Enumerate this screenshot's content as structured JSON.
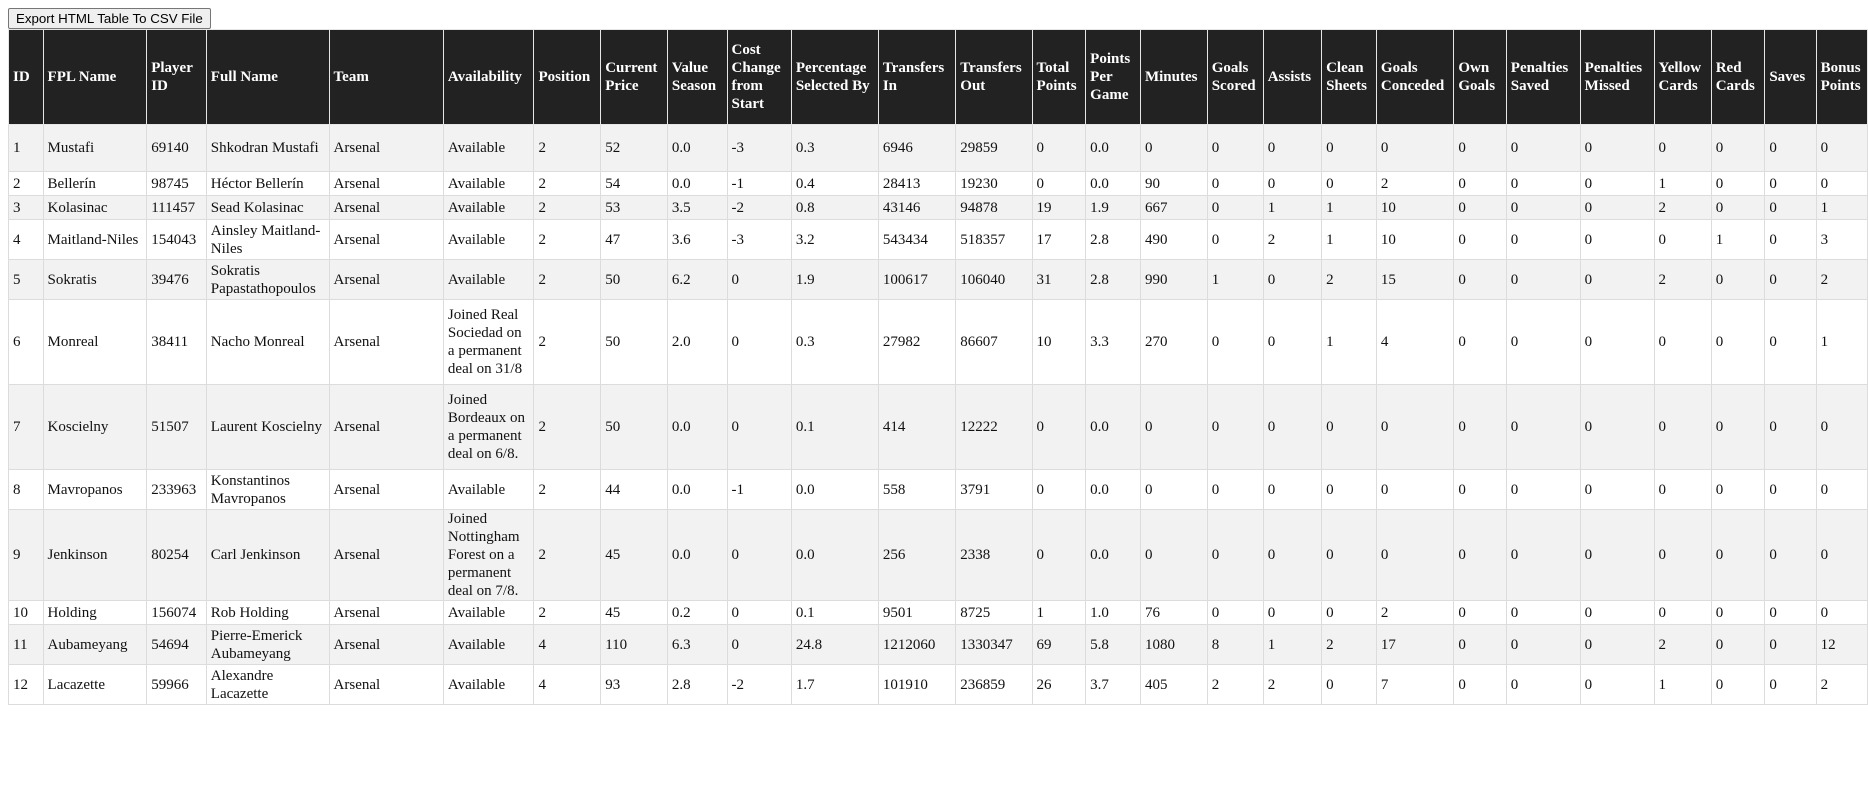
{
  "toolbar": {
    "export_label": "Export HTML Table To CSV File"
  },
  "colors": {
    "header_bg": "#222222",
    "header_text": "#ffffff",
    "row_odd": "#f2f2f2",
    "row_even": "#ffffff"
  },
  "table": {
    "columns": [
      "ID",
      "FPL Name",
      "Player ID",
      "Full Name",
      "Team",
      "Availability",
      "Position",
      "Current Price",
      "Value Season",
      "Cost Change from Start",
      "Percentage Selected By",
      "Transfers In",
      "Transfers Out",
      "Total Points",
      "Points Per Game",
      "Minutes",
      "Goals Scored",
      "Assists",
      "Clean Sheets",
      "Goals Conceded",
      "Own Goals",
      "Penalties Saved",
      "Penalties Missed",
      "Yellow Cards",
      "Red Cards",
      "Saves",
      "Bonus Points"
    ],
    "rows": [
      [
        "1",
        "Mustafi",
        "69140",
        "Shkodran Mustafi",
        "Arsenal",
        "Available",
        "2",
        "52",
        "0.0",
        "-3",
        "0.3",
        "6946",
        "29859",
        "0",
        "0.0",
        "0",
        "0",
        "0",
        "0",
        "0",
        "0",
        "0",
        "0",
        "0",
        "0",
        "0",
        "0"
      ],
      [
        "2",
        "Bellerín",
        "98745",
        "Héctor Bellerín",
        "Arsenal",
        "Available",
        "2",
        "54",
        "0.0",
        "-1",
        "0.4",
        "28413",
        "19230",
        "0",
        "0.0",
        "90",
        "0",
        "0",
        "0",
        "2",
        "0",
        "0",
        "0",
        "1",
        "0",
        "0",
        "0"
      ],
      [
        "3",
        "Kolasinac",
        "111457",
        "Sead Kolasinac",
        "Arsenal",
        "Available",
        "2",
        "53",
        "3.5",
        "-2",
        "0.8",
        "43146",
        "94878",
        "19",
        "1.9",
        "667",
        "0",
        "1",
        "1",
        "10",
        "0",
        "0",
        "0",
        "2",
        "0",
        "0",
        "1"
      ],
      [
        "4",
        "Maitland-Niles",
        "154043",
        "Ainsley Maitland-Niles",
        "Arsenal",
        "Available",
        "2",
        "47",
        "3.6",
        "-3",
        "3.2",
        "543434",
        "518357",
        "17",
        "2.8",
        "490",
        "0",
        "2",
        "1",
        "10",
        "0",
        "0",
        "0",
        "0",
        "1",
        "0",
        "3"
      ],
      [
        "5",
        "Sokratis",
        "39476",
        "Sokratis Papastathopoulos",
        "Arsenal",
        "Available",
        "2",
        "50",
        "6.2",
        "0",
        "1.9",
        "100617",
        "106040",
        "31",
        "2.8",
        "990",
        "1",
        "0",
        "2",
        "15",
        "0",
        "0",
        "0",
        "2",
        "0",
        "0",
        "2"
      ],
      [
        "6",
        "Monreal",
        "38411",
        "Nacho Monreal",
        "Arsenal",
        "Joined Real Sociedad on a permanent deal on 31/8",
        "2",
        "50",
        "2.0",
        "0",
        "0.3",
        "27982",
        "86607",
        "10",
        "3.3",
        "270",
        "0",
        "0",
        "1",
        "4",
        "0",
        "0",
        "0",
        "0",
        "0",
        "0",
        "1"
      ],
      [
        "7",
        "Koscielny",
        "51507",
        "Laurent Koscielny",
        "Arsenal",
        "Joined Bordeaux on a permanent deal on 6/8.",
        "2",
        "50",
        "0.0",
        "0",
        "0.1",
        "414",
        "12222",
        "0",
        "0.0",
        "0",
        "0",
        "0",
        "0",
        "0",
        "0",
        "0",
        "0",
        "0",
        "0",
        "0",
        "0"
      ],
      [
        "8",
        "Mavropanos",
        "233963",
        "Konstantinos Mavropanos",
        "Arsenal",
        "Available",
        "2",
        "44",
        "0.0",
        "-1",
        "0.0",
        "558",
        "3791",
        "0",
        "0.0",
        "0",
        "0",
        "0",
        "0",
        "0",
        "0",
        "0",
        "0",
        "0",
        "0",
        "0",
        "0"
      ],
      [
        "9",
        "Jenkinson",
        "80254",
        "Carl Jenkinson",
        "Arsenal",
        "Joined Nottingham Forest on a permanent deal on 7/8.",
        "2",
        "45",
        "0.0",
        "0",
        "0.0",
        "256",
        "2338",
        "0",
        "0.0",
        "0",
        "0",
        "0",
        "0",
        "0",
        "0",
        "0",
        "0",
        "0",
        "0",
        "0",
        "0"
      ],
      [
        "10",
        "Holding",
        "156074",
        "Rob Holding",
        "Arsenal",
        "Available",
        "2",
        "45",
        "0.2",
        "0",
        "0.1",
        "9501",
        "8725",
        "1",
        "1.0",
        "76",
        "0",
        "0",
        "0",
        "2",
        "0",
        "0",
        "0",
        "0",
        "0",
        "0",
        "0"
      ],
      [
        "11",
        "Aubameyang",
        "54694",
        "Pierre-Emerick Aubameyang",
        "Arsenal",
        "Available",
        "4",
        "110",
        "6.3",
        "0",
        "24.8",
        "1212060",
        "1330347",
        "69",
        "5.8",
        "1080",
        "8",
        "1",
        "2",
        "17",
        "0",
        "0",
        "0",
        "2",
        "0",
        "0",
        "12"
      ],
      [
        "12",
        "Lacazette",
        "59966",
        "Alexandre Lacazette",
        "Arsenal",
        "Available",
        "4",
        "93",
        "2.8",
        "-2",
        "1.7",
        "101910",
        "236859",
        "26",
        "3.7",
        "405",
        "2",
        "2",
        "0",
        "7",
        "0",
        "0",
        "0",
        "1",
        "0",
        "0",
        "2"
      ]
    ]
  }
}
